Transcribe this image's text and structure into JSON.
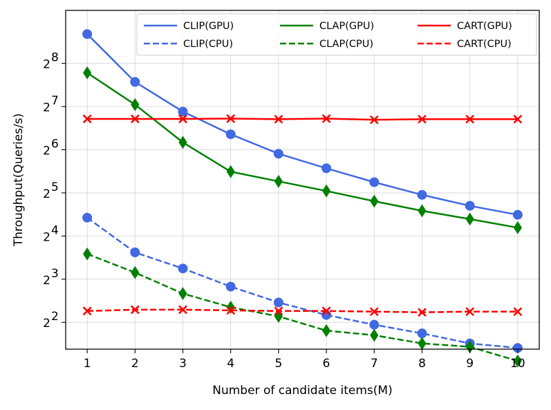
{
  "chart_data": {
    "type": "line",
    "xlabel": "Number of candidate items(M)",
    "ylabel": "Throughput(Queries/s)",
    "x": [
      1,
      2,
      3,
      4,
      5,
      6,
      7,
      8,
      9,
      10
    ],
    "xlim": [
      0.55,
      10.45
    ],
    "y_scale": "log2",
    "ylim": [
      2.6,
      600
    ],
    "y_ticks": [
      4,
      8,
      16,
      32,
      64,
      128,
      256
    ],
    "y_tick_labels": [
      {
        "base": "2",
        "exp": "2"
      },
      {
        "base": "2",
        "exp": "3"
      },
      {
        "base": "2",
        "exp": "4"
      },
      {
        "base": "2",
        "exp": "5"
      },
      {
        "base": "2",
        "exp": "6"
      },
      {
        "base": "2",
        "exp": "7"
      },
      {
        "base": "2",
        "exp": "8"
      }
    ],
    "grid": true,
    "legend_position": "top-right",
    "legend_columns": 3,
    "series": [
      {
        "name": "CLIP(GPU)",
        "color": "#4169E1",
        "linestyle": "solid",
        "marker": "circle",
        "values": [
          410,
          190,
          118,
          82,
          60,
          47.5,
          38,
          31,
          26,
          22.5
        ]
      },
      {
        "name": "CLIP(CPU)",
        "color": "#4169E1",
        "linestyle": "dashed",
        "marker": "circle",
        "values": [
          21.5,
          12.3,
          9.5,
          7.1,
          5.5,
          4.5,
          3.85,
          3.35,
          2.85,
          2.65
        ]
      },
      {
        "name": "CLAP(GPU)",
        "color": "#008000",
        "linestyle": "solid",
        "marker": "diamond",
        "values": [
          220,
          132,
          72,
          45,
          38.5,
          33,
          28,
          24,
          21,
          18.3
        ]
      },
      {
        "name": "CLAP(CPU)",
        "color": "#008000",
        "linestyle": "dashed",
        "marker": "diamond",
        "values": [
          12,
          8.9,
          6.35,
          5.1,
          4.4,
          3.5,
          3.25,
          2.85,
          2.7,
          2.15
        ]
      },
      {
        "name": "CART(GPU)",
        "color": "#FF0000",
        "linestyle": "solid",
        "marker": "x",
        "values": [
          105,
          105,
          105,
          105.5,
          104.5,
          105.5,
          103.5,
          104.5,
          104.5,
          104.5
        ]
      },
      {
        "name": "CART(CPU)",
        "color": "#FF0000",
        "linestyle": "dashed",
        "marker": "x",
        "values": [
          4.8,
          4.9,
          4.9,
          4.85,
          4.8,
          4.8,
          4.75,
          4.7,
          4.75,
          4.75
        ]
      }
    ]
  }
}
